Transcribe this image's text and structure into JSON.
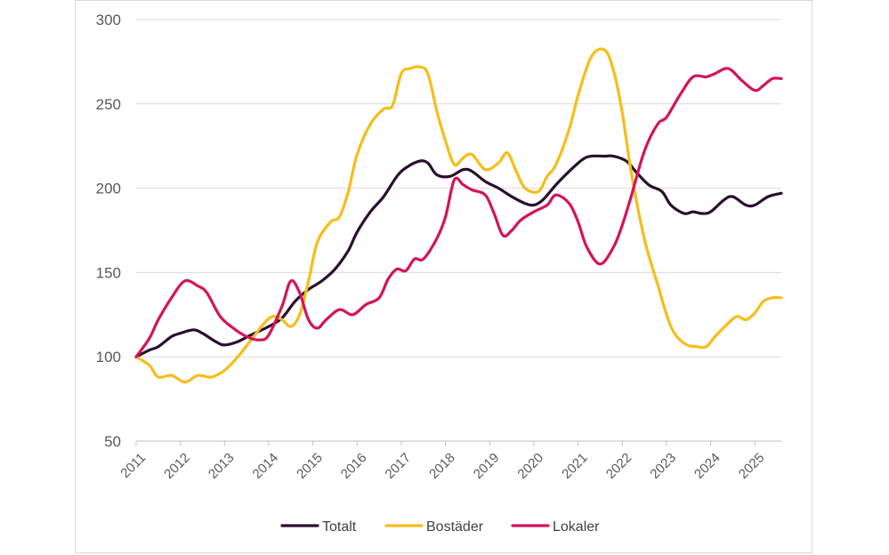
{
  "chart_data": {
    "type": "line",
    "title": "",
    "xlabel": "",
    "ylabel": "",
    "ylim": [
      50,
      300
    ],
    "xlim": [
      2011,
      2025.6
    ],
    "yticks": [
      300,
      250,
      200,
      150,
      100,
      50
    ],
    "xticks": [
      2011,
      2012,
      2013,
      2014,
      2015,
      2016,
      2017,
      2018,
      2019,
      2020,
      2021,
      2022,
      2023,
      2024,
      2025
    ],
    "grid": "horizontal",
    "legend_position": "bottom",
    "series": [
      {
        "name": "Totalt",
        "color": "#2b0f2f",
        "points": [
          [
            2011.0,
            100
          ],
          [
            2011.3,
            104
          ],
          [
            2011.5,
            106
          ],
          [
            2011.8,
            112
          ],
          [
            2012.0,
            114
          ],
          [
            2012.3,
            116
          ],
          [
            2012.5,
            114
          ],
          [
            2012.8,
            109
          ],
          [
            2013.0,
            107
          ],
          [
            2013.3,
            109
          ],
          [
            2013.6,
            113
          ],
          [
            2014.0,
            118
          ],
          [
            2014.3,
            123
          ],
          [
            2014.6,
            133
          ],
          [
            2014.9,
            140
          ],
          [
            2015.2,
            145
          ],
          [
            2015.5,
            152
          ],
          [
            2015.8,
            163
          ],
          [
            2016.0,
            174
          ],
          [
            2016.3,
            186
          ],
          [
            2016.6,
            195
          ],
          [
            2016.9,
            207
          ],
          [
            2017.1,
            212
          ],
          [
            2017.4,
            216
          ],
          [
            2017.6,
            215
          ],
          [
            2017.8,
            208
          ],
          [
            2018.1,
            207
          ],
          [
            2018.4,
            211
          ],
          [
            2018.6,
            210
          ],
          [
            2018.9,
            204
          ],
          [
            2019.2,
            200
          ],
          [
            2019.5,
            195
          ],
          [
            2019.8,
            191
          ],
          [
            2020.0,
            190
          ],
          [
            2020.2,
            193
          ],
          [
            2020.5,
            202
          ],
          [
            2020.8,
            210
          ],
          [
            2021.1,
            217
          ],
          [
            2021.3,
            219
          ],
          [
            2021.6,
            219
          ],
          [
            2021.8,
            219
          ],
          [
            2022.1,
            216
          ],
          [
            2022.3,
            210
          ],
          [
            2022.6,
            202
          ],
          [
            2022.9,
            198
          ],
          [
            2023.1,
            190
          ],
          [
            2023.4,
            185
          ],
          [
            2023.6,
            186
          ],
          [
            2023.8,
            185
          ],
          [
            2024.0,
            186
          ],
          [
            2024.3,
            193
          ],
          [
            2024.5,
            195
          ],
          [
            2024.8,
            190
          ],
          [
            2025.0,
            190
          ],
          [
            2025.3,
            195
          ],
          [
            2025.6,
            197
          ]
        ]
      },
      {
        "name": "Bostäder",
        "color": "#f7bd18",
        "points": [
          [
            2011.0,
            100
          ],
          [
            2011.3,
            95
          ],
          [
            2011.5,
            88
          ],
          [
            2011.8,
            89
          ],
          [
            2012.1,
            85
          ],
          [
            2012.4,
            89
          ],
          [
            2012.7,
            88
          ],
          [
            2013.0,
            92
          ],
          [
            2013.3,
            100
          ],
          [
            2013.6,
            110
          ],
          [
            2013.9,
            120
          ],
          [
            2014.1,
            124
          ],
          [
            2014.3,
            122
          ],
          [
            2014.5,
            118
          ],
          [
            2014.7,
            125
          ],
          [
            2014.9,
            145
          ],
          [
            2015.1,
            168
          ],
          [
            2015.4,
            180
          ],
          [
            2015.6,
            183
          ],
          [
            2015.8,
            198
          ],
          [
            2016.0,
            220
          ],
          [
            2016.3,
            238
          ],
          [
            2016.6,
            247
          ],
          [
            2016.8,
            249
          ],
          [
            2017.0,
            268
          ],
          [
            2017.2,
            271
          ],
          [
            2017.4,
            272
          ],
          [
            2017.6,
            268
          ],
          [
            2017.8,
            246
          ],
          [
            2018.0,
            228
          ],
          [
            2018.2,
            214
          ],
          [
            2018.4,
            218
          ],
          [
            2018.6,
            220
          ],
          [
            2018.9,
            211
          ],
          [
            2019.2,
            215
          ],
          [
            2019.4,
            221
          ],
          [
            2019.6,
            210
          ],
          [
            2019.8,
            200
          ],
          [
            2020.1,
            198
          ],
          [
            2020.3,
            207
          ],
          [
            2020.5,
            214
          ],
          [
            2020.8,
            235
          ],
          [
            2021.0,
            255
          ],
          [
            2021.3,
            278
          ],
          [
            2021.6,
            282
          ],
          [
            2021.8,
            270
          ],
          [
            2022.0,
            245
          ],
          [
            2022.2,
            210
          ],
          [
            2022.5,
            170
          ],
          [
            2022.8,
            143
          ],
          [
            2023.1,
            118
          ],
          [
            2023.4,
            108
          ],
          [
            2023.7,
            106
          ],
          [
            2023.9,
            106
          ],
          [
            2024.1,
            112
          ],
          [
            2024.4,
            120
          ],
          [
            2024.6,
            124
          ],
          [
            2024.8,
            122
          ],
          [
            2025.0,
            126
          ],
          [
            2025.2,
            133
          ],
          [
            2025.4,
            135
          ],
          [
            2025.6,
            135
          ]
        ]
      },
      {
        "name": "Lokaler",
        "color": "#d4145a",
        "points": [
          [
            2011.0,
            100
          ],
          [
            2011.3,
            111
          ],
          [
            2011.5,
            122
          ],
          [
            2011.8,
            135
          ],
          [
            2012.1,
            145
          ],
          [
            2012.4,
            142
          ],
          [
            2012.6,
            138
          ],
          [
            2012.9,
            124
          ],
          [
            2013.2,
            117
          ],
          [
            2013.5,
            112
          ],
          [
            2013.8,
            110
          ],
          [
            2014.0,
            113
          ],
          [
            2014.3,
            130
          ],
          [
            2014.5,
            145
          ],
          [
            2014.7,
            138
          ],
          [
            2014.9,
            122
          ],
          [
            2015.1,
            117
          ],
          [
            2015.3,
            122
          ],
          [
            2015.6,
            128
          ],
          [
            2015.9,
            125
          ],
          [
            2016.2,
            131
          ],
          [
            2016.5,
            135
          ],
          [
            2016.7,
            146
          ],
          [
            2016.9,
            152
          ],
          [
            2017.1,
            151
          ],
          [
            2017.3,
            158
          ],
          [
            2017.5,
            158
          ],
          [
            2017.8,
            170
          ],
          [
            2018.0,
            183
          ],
          [
            2018.2,
            205
          ],
          [
            2018.4,
            202
          ],
          [
            2018.6,
            199
          ],
          [
            2018.9,
            196
          ],
          [
            2019.1,
            185
          ],
          [
            2019.3,
            172
          ],
          [
            2019.5,
            175
          ],
          [
            2019.7,
            181
          ],
          [
            2020.0,
            186
          ],
          [
            2020.3,
            190
          ],
          [
            2020.5,
            196
          ],
          [
            2020.8,
            191
          ],
          [
            2021.0,
            180
          ],
          [
            2021.2,
            165
          ],
          [
            2021.5,
            155
          ],
          [
            2021.8,
            165
          ],
          [
            2022.0,
            178
          ],
          [
            2022.2,
            195
          ],
          [
            2022.5,
            222
          ],
          [
            2022.8,
            238
          ],
          [
            2023.0,
            242
          ],
          [
            2023.3,
            255
          ],
          [
            2023.6,
            266
          ],
          [
            2023.9,
            266
          ],
          [
            2024.1,
            268
          ],
          [
            2024.4,
            271
          ],
          [
            2024.7,
            264
          ],
          [
            2025.0,
            258
          ],
          [
            2025.2,
            261
          ],
          [
            2025.4,
            265
          ],
          [
            2025.6,
            265
          ]
        ]
      }
    ]
  }
}
